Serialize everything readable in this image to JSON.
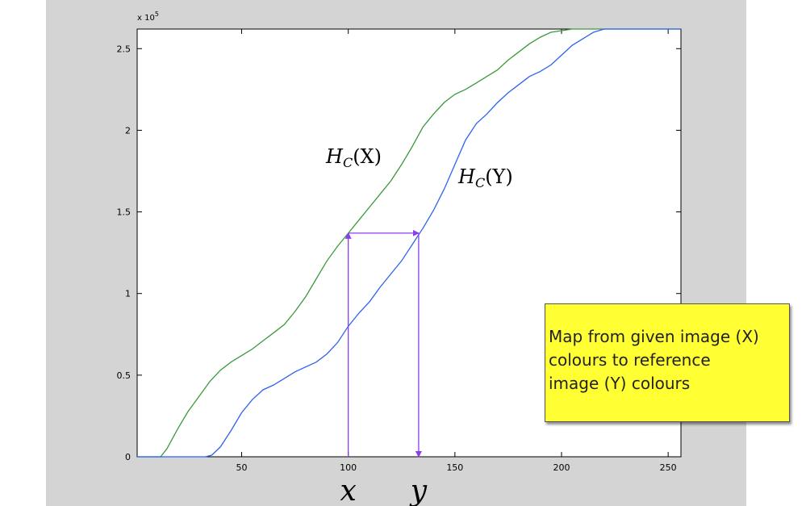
{
  "chart_data": {
    "type": "line",
    "y_multiplier_label": "x 10^5",
    "xlim": [
      1,
      256
    ],
    "ylim": [
      0,
      2.62
    ],
    "x_ticks": [
      50,
      100,
      150,
      200,
      250
    ],
    "y_ticks": [
      0,
      0.5,
      1,
      1.5,
      2,
      2.5
    ],
    "grid": false,
    "series": [
      {
        "name": "H_C(X)",
        "color": "#3a9a3a",
        "points": [
          [
            1,
            0
          ],
          [
            12,
            0
          ],
          [
            15,
            0.05
          ],
          [
            20,
            0.17
          ],
          [
            25,
            0.28
          ],
          [
            30,
            0.37
          ],
          [
            35,
            0.46
          ],
          [
            40,
            0.53
          ],
          [
            45,
            0.58
          ],
          [
            50,
            0.62
          ],
          [
            55,
            0.66
          ],
          [
            60,
            0.71
          ],
          [
            65,
            0.76
          ],
          [
            70,
            0.81
          ],
          [
            75,
            0.89
          ],
          [
            80,
            0.98
          ],
          [
            85,
            1.09
          ],
          [
            90,
            1.2
          ],
          [
            95,
            1.29
          ],
          [
            100,
            1.37
          ],
          [
            105,
            1.45
          ],
          [
            110,
            1.53
          ],
          [
            115,
            1.61
          ],
          [
            120,
            1.69
          ],
          [
            125,
            1.79
          ],
          [
            130,
            1.9
          ],
          [
            135,
            2.02
          ],
          [
            140,
            2.1
          ],
          [
            145,
            2.17
          ],
          [
            150,
            2.22
          ],
          [
            155,
            2.25
          ],
          [
            160,
            2.29
          ],
          [
            165,
            2.33
          ],
          [
            170,
            2.37
          ],
          [
            175,
            2.43
          ],
          [
            180,
            2.48
          ],
          [
            185,
            2.53
          ],
          [
            190,
            2.57
          ],
          [
            195,
            2.6
          ],
          [
            200,
            2.61
          ],
          [
            205,
            2.62
          ],
          [
            256,
            2.62
          ]
        ]
      },
      {
        "name": "H_C(Y)",
        "color": "#2f62f0",
        "points": [
          [
            1,
            0
          ],
          [
            33,
            0
          ],
          [
            36,
            0.01
          ],
          [
            40,
            0.06
          ],
          [
            45,
            0.16
          ],
          [
            50,
            0.27
          ],
          [
            55,
            0.35
          ],
          [
            60,
            0.41
          ],
          [
            65,
            0.44
          ],
          [
            70,
            0.48
          ],
          [
            75,
            0.52
          ],
          [
            80,
            0.55
          ],
          [
            85,
            0.58
          ],
          [
            90,
            0.63
          ],
          [
            95,
            0.7
          ],
          [
            100,
            0.8
          ],
          [
            105,
            0.88
          ],
          [
            110,
            0.95
          ],
          [
            115,
            1.04
          ],
          [
            120,
            1.12
          ],
          [
            125,
            1.2
          ],
          [
            130,
            1.3
          ],
          [
            135,
            1.4
          ],
          [
            140,
            1.51
          ],
          [
            145,
            1.64
          ],
          [
            150,
            1.79
          ],
          [
            155,
            1.94
          ],
          [
            160,
            2.04
          ],
          [
            165,
            2.1
          ],
          [
            170,
            2.17
          ],
          [
            175,
            2.23
          ],
          [
            180,
            2.28
          ],
          [
            185,
            2.33
          ],
          [
            190,
            2.36
          ],
          [
            195,
            2.4
          ],
          [
            200,
            2.46
          ],
          [
            205,
            2.52
          ],
          [
            210,
            2.56
          ],
          [
            215,
            2.6
          ],
          [
            220,
            2.62
          ],
          [
            256,
            2.62
          ]
        ]
      }
    ],
    "mapping": {
      "color": "#8a3df0",
      "x_from": 100,
      "x_to": 133,
      "level": 1.37
    },
    "labels": {
      "hx": "H_C(X)",
      "hy": "H_C(Y)",
      "x_var": "x",
      "y_var": "y"
    }
  },
  "note": {
    "lines": [
      "Map from given image (X)",
      "colours to reference",
      "image (Y) colours"
    ]
  }
}
